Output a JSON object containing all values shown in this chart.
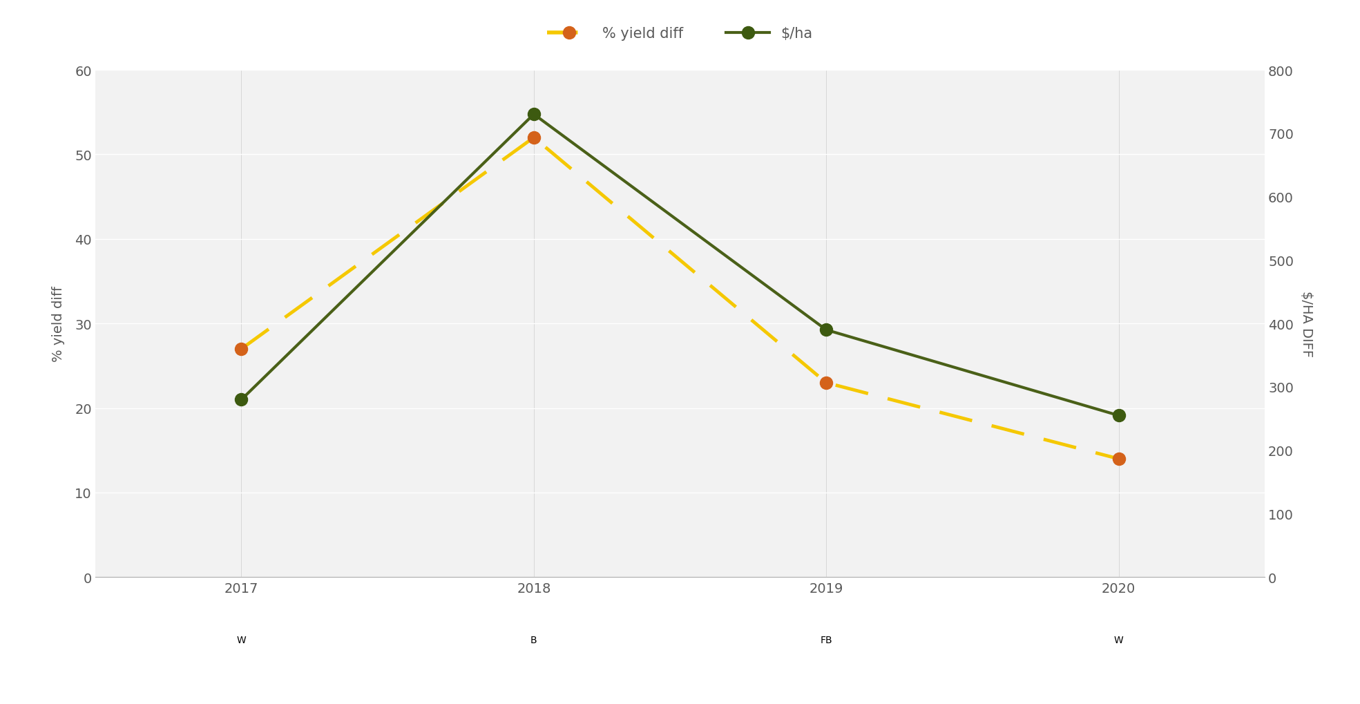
{
  "x_labels_year": [
    "2017",
    "2018",
    "2019",
    "2020"
  ],
  "x_labels_crop": [
    "W",
    "B",
    "FB",
    "W"
  ],
  "x_values": [
    0,
    1,
    2,
    3
  ],
  "yield_diff": [
    27,
    52,
    23,
    14
  ],
  "dollar_ha": [
    280,
    730,
    390,
    255
  ],
  "yield_line_color": "#F5C800",
  "yield_marker_color": "#D4621A",
  "dollar_color": "#4A6018",
  "dollar_marker_color": "#3D5A10",
  "left_ylim": [
    0,
    60
  ],
  "right_ylim": [
    0,
    800
  ],
  "left_yticks": [
    0,
    10,
    20,
    30,
    40,
    50,
    60
  ],
  "right_yticks": [
    0,
    100,
    200,
    300,
    400,
    500,
    600,
    700,
    800
  ],
  "left_ylabel": "% yield diff",
  "right_ylabel": "$/HA DIFF",
  "legend_yield_label": "% yield diff",
  "legend_dollar_label": "$/ha",
  "background_color": "#FFFFFF",
  "plot_bg_color": "#F2F2F2",
  "grid_color": "#FFFFFF",
  "label_fontsize": 14,
  "tick_fontsize": 14,
  "legend_fontsize": 15,
  "axis_label_color": "#595959"
}
